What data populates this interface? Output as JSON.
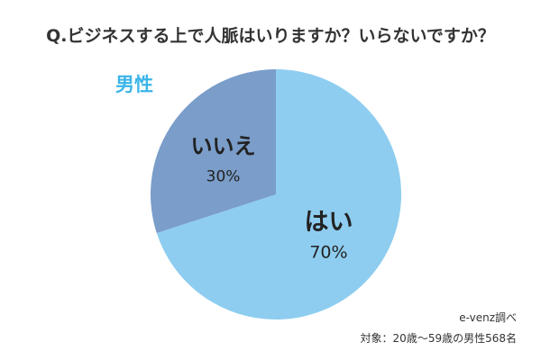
{
  "chart_data": {
    "type": "pie",
    "title": "Q.ビジネスする上で人脈はいりますか？いらないですか？",
    "subtitle": "男性",
    "categories": [
      "はい",
      "いいえ"
    ],
    "values": [
      70,
      30
    ],
    "value_labels": [
      "70%",
      "30%"
    ],
    "colors": [
      "#8ecdf0",
      "#7a9dc9"
    ],
    "subtitle_color": "#3bb5e8",
    "start_angle_deg": 0,
    "direction": "clockwise",
    "legend": "none"
  },
  "footer": {
    "source": "e-venz調べ",
    "note": "対象：20歳〜59歳の男性568名"
  }
}
